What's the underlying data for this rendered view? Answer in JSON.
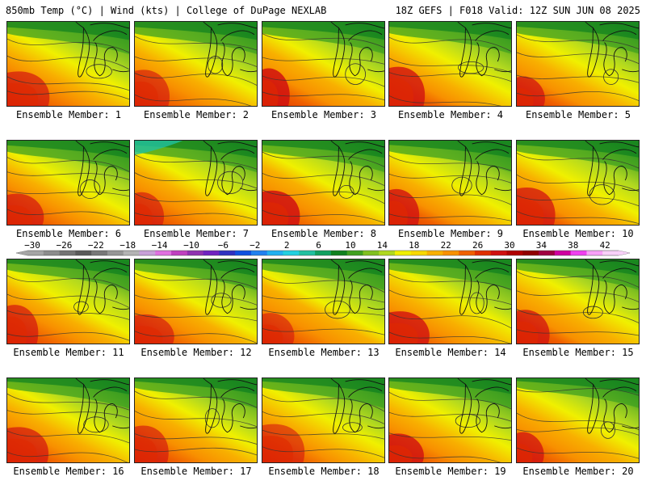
{
  "header": {
    "left": "850mb Temp (°C) | Wind (kts) | College of DuPage NEXLAB",
    "right": "18Z GEFS | F018 Valid: 12Z SUN JUN 08 2025"
  },
  "members": [
    {
      "label": "Ensemble Member: 1"
    },
    {
      "label": "Ensemble Member: 2"
    },
    {
      "label": "Ensemble Member: 3"
    },
    {
      "label": "Ensemble Member: 4"
    },
    {
      "label": "Ensemble Member: 5"
    },
    {
      "label": "Ensemble Member: 6"
    },
    {
      "label": "Ensemble Member: 7"
    },
    {
      "label": "Ensemble Member: 8"
    },
    {
      "label": "Ensemble Member: 9"
    },
    {
      "label": "Ensemble Member: 10"
    },
    {
      "label": "Ensemble Member: 11"
    },
    {
      "label": "Ensemble Member: 12"
    },
    {
      "label": "Ensemble Member: 13"
    },
    {
      "label": "Ensemble Member: 14"
    },
    {
      "label": "Ensemble Member: 15"
    },
    {
      "label": "Ensemble Member: 16"
    },
    {
      "label": "Ensemble Member: 17"
    },
    {
      "label": "Ensemble Member: 18"
    },
    {
      "label": "Ensemble Member: 19"
    },
    {
      "label": "Ensemble Member: 20"
    }
  ],
  "colorbar": {
    "tick_labels": [
      "−30",
      "−26",
      "−22",
      "−18",
      "−14",
      "−10",
      "−6",
      "−2",
      "2",
      "6",
      "10",
      "14",
      "18",
      "22",
      "26",
      "30",
      "34",
      "38",
      "42"
    ],
    "colors": [
      "#a5a5a5",
      "#8c8c8c",
      "#737373",
      "#5a5a5a",
      "#787878",
      "#969696",
      "#b4b4b4",
      "#c8a0d8",
      "#e070e0",
      "#c040c0",
      "#9030b0",
      "#7020c0",
      "#3030c0",
      "#1050e0",
      "#2080f0",
      "#20b0f0",
      "#20d0e0",
      "#20c0a0",
      "#10a060",
      "#108020",
      "#40a020",
      "#80c020",
      "#b0d820",
      "#f0f000",
      "#f8d800",
      "#f8b000",
      "#f89000",
      "#f06000",
      "#e03000",
      "#d01010",
      "#b00000",
      "#900000",
      "#a00040",
      "#d000a0",
      "#f040f0",
      "#f8a0f8",
      "#f8d0f8"
    ]
  },
  "colors": {
    "background": "#ffffff",
    "text": "#000000",
    "map_border": "#222222"
  }
}
